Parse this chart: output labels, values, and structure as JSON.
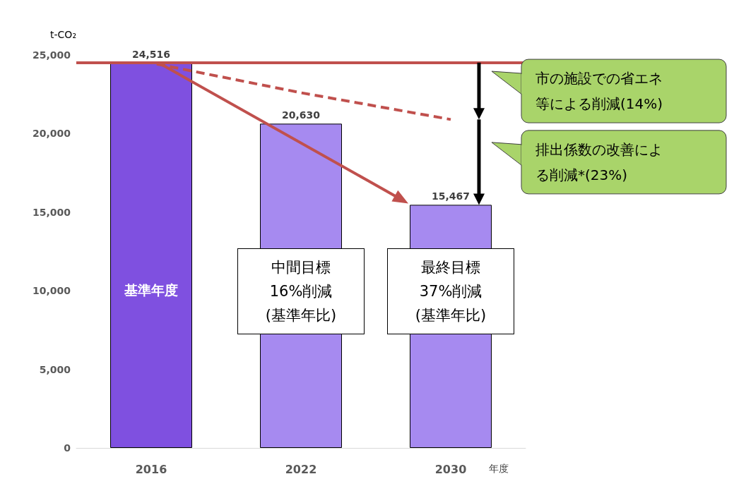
{
  "chart_data": {
    "type": "bar",
    "categories": [
      "2016",
      "2022",
      "2030"
    ],
    "ylabel": "t-CO₂",
    "xlabel": "年度",
    "ylim": [
      0,
      25000
    ],
    "yticks": [
      {
        "value": 0,
        "label": "0"
      },
      {
        "value": 5000,
        "label": "5,000"
      },
      {
        "value": 10000,
        "label": "10,000"
      },
      {
        "value": 15000,
        "label": "15,000"
      },
      {
        "value": 20000,
        "label": "20,000"
      },
      {
        "value": 25000,
        "label": "25,000"
      }
    ],
    "series": [
      {
        "colors": [
          "#7f50e0",
          "#a68af0",
          "#a68af0"
        ],
        "values": [
          24516,
          20630,
          15467
        ],
        "value_labels": [
          "24,516",
          "20,630",
          "15,467"
        ]
      },
      {
        "type": "line",
        "color": "#c0504d",
        "line_style": "dashed",
        "values": [
          24500,
          22600,
          20900
        ]
      }
    ],
    "ref_lines": [
      {
        "axis": "y",
        "value": 24516,
        "color": "#c0504d"
      }
    ],
    "annotations": [
      "基準年度",
      "中間目標\n16%削減\n(基準年比)",
      "最終目標\n37%削減\n(基準年比)",
      "市の施設での省エネ等による削減(14%)",
      "排出係数の改善による削減*(23%)"
    ],
    "grid": false,
    "marker": "none"
  }
}
